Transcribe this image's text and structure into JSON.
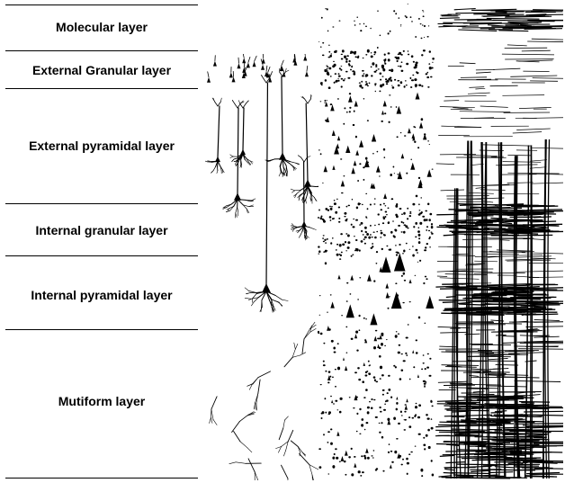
{
  "layers": [
    {
      "key": "molecular",
      "label": "Molecular layer"
    },
    {
      "key": "external-granular",
      "label": "External Granular layer"
    },
    {
      "key": "external-pyramidal",
      "label": "External pyramidal layer"
    },
    {
      "key": "internal-granular",
      "label": "Internal granular layer"
    },
    {
      "key": "internal-pyramidal",
      "label": "Internal pyramidal layer"
    },
    {
      "key": "multiform",
      "label": "Mutiform layer"
    }
  ],
  "illustration": {
    "panels": [
      "golgi-stain-neurons",
      "nissl-stain-cell-bodies",
      "weigert-stain-myelinated-fibers"
    ],
    "ink_color": "#000000",
    "background_color": "#ffffff"
  }
}
